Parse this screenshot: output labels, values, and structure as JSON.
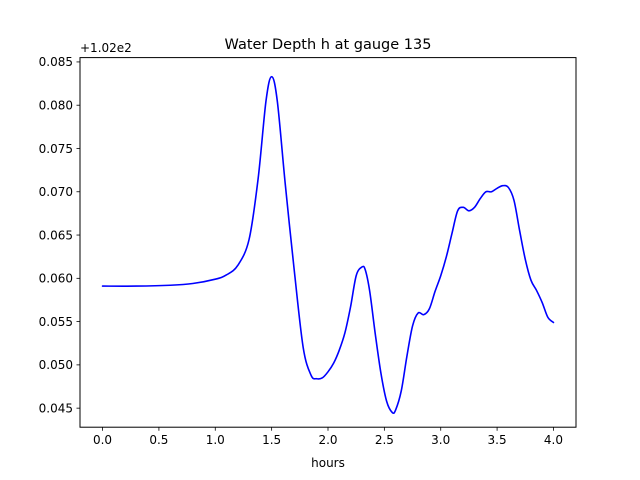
{
  "chart_data": {
    "type": "line",
    "title": "Water Depth h at gauge 135",
    "xlabel": "hours",
    "ylabel": "",
    "y_offset_label": "+1.02e2",
    "xlim": [
      -0.2,
      4.2
    ],
    "ylim": [
      0.0428,
      0.0855
    ],
    "x_ticks": [
      0.0,
      0.5,
      1.0,
      1.5,
      2.0,
      2.5,
      3.0,
      3.5,
      4.0
    ],
    "x_tick_labels": [
      "0.0",
      "0.5",
      "1.0",
      "1.5",
      "2.0",
      "2.5",
      "3.0",
      "3.5",
      "4.0"
    ],
    "y_ticks": [
      0.045,
      0.05,
      0.055,
      0.06,
      0.065,
      0.07,
      0.075,
      0.08,
      0.085
    ],
    "y_tick_labels": [
      "0.045",
      "0.050",
      "0.055",
      "0.060",
      "0.065",
      "0.070",
      "0.075",
      "0.080",
      "0.085"
    ],
    "grid": false,
    "series": [
      {
        "color": "#0000ff",
        "x": [
          0.0,
          0.3,
          0.6,
          0.8,
          1.0,
          1.1,
          1.2,
          1.3,
          1.38,
          1.45,
          1.5,
          1.55,
          1.62,
          1.7,
          1.78,
          1.85,
          1.9,
          1.95,
          2.0,
          2.05,
          2.1,
          2.15,
          2.2,
          2.25,
          2.3,
          2.33,
          2.37,
          2.42,
          2.47,
          2.52,
          2.57,
          2.6,
          2.65,
          2.7,
          2.75,
          2.8,
          2.85,
          2.9,
          2.95,
          3.0,
          3.05,
          3.1,
          3.15,
          3.2,
          3.25,
          3.3,
          3.35,
          3.4,
          3.45,
          3.5,
          3.55,
          3.6,
          3.65,
          3.7,
          3.75,
          3.8,
          3.85,
          3.9,
          3.95,
          4.0
        ],
        "y": [
          0.0591,
          0.0591,
          0.0592,
          0.0594,
          0.0599,
          0.0604,
          0.0615,
          0.0645,
          0.0715,
          0.0805,
          0.0833,
          0.0805,
          0.071,
          0.061,
          0.052,
          0.0488,
          0.0484,
          0.0485,
          0.0492,
          0.0502,
          0.0517,
          0.0537,
          0.0567,
          0.0603,
          0.0613,
          0.061,
          0.0585,
          0.0535,
          0.049,
          0.0458,
          0.0445,
          0.0448,
          0.047,
          0.051,
          0.0545,
          0.056,
          0.0558,
          0.0565,
          0.0585,
          0.0603,
          0.0625,
          0.0652,
          0.0678,
          0.0682,
          0.0678,
          0.0682,
          0.0692,
          0.07,
          0.07,
          0.0704,
          0.0707,
          0.0705,
          0.069,
          0.0655,
          0.0622,
          0.0598,
          0.0586,
          0.0572,
          0.0555,
          0.0549
        ]
      }
    ]
  }
}
